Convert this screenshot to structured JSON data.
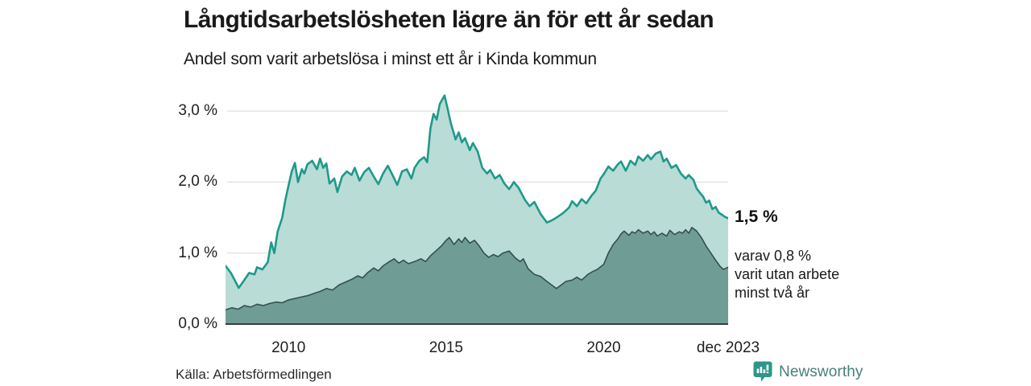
{
  "header": {
    "title": "Långtidsarbetslösheten lägre än för ett år sedan",
    "subtitle": "Andel som varit arbetslösa i minst ett år i Kinda kommun"
  },
  "footer": {
    "source": "Källa: Arbetsförmedlingen",
    "brand": "Newsworthy",
    "brand_color": "#2e9688",
    "brand_text_color": "#46817b"
  },
  "chart_data": {
    "type": "area",
    "title": "Långtidsarbetslösheten lägre än för ett år sedan",
    "subtitle": "Andel som varit arbetslösa i minst ett år i Kinda kommun",
    "unit": "%",
    "x_domain": [
      2008,
      2023.95
    ],
    "ylim": [
      0,
      3.32
    ],
    "grid": true,
    "gridline_color": "#d9d9d9",
    "baseline_color": "#3c3c3c",
    "y_ticks": [
      {
        "label": "0,0 %",
        "value": 0
      },
      {
        "label": "1,0 %",
        "value": 1
      },
      {
        "label": "2,0 %",
        "value": 2
      },
      {
        "label": "3,0 %",
        "value": 3
      }
    ],
    "x_ticks": [
      {
        "label": "2010",
        "year": 2010
      },
      {
        "label": "2015",
        "year": 2015
      },
      {
        "label": "2020",
        "year": 2020
      },
      {
        "label": "dec 2023",
        "year": 2023.95
      }
    ],
    "series": [
      {
        "name": "arbetslösa minst ett år",
        "line_color": "#1f998a",
        "fill_color": "#b9dcd6",
        "line_width": 2.6,
        "last_value_label": "1,5 %",
        "points": [
          [
            2008.0,
            0.82
          ],
          [
            2008.17,
            0.72
          ],
          [
            2008.42,
            0.51
          ],
          [
            2008.58,
            0.61
          ],
          [
            2008.75,
            0.72
          ],
          [
            2008.92,
            0.7
          ],
          [
            2009.0,
            0.8
          ],
          [
            2009.17,
            0.77
          ],
          [
            2009.34,
            0.87
          ],
          [
            2009.45,
            1.15
          ],
          [
            2009.55,
            1.0
          ],
          [
            2009.65,
            1.3
          ],
          [
            2009.8,
            1.5
          ],
          [
            2009.9,
            1.75
          ],
          [
            2010.0,
            1.95
          ],
          [
            2010.1,
            2.15
          ],
          [
            2010.2,
            2.27
          ],
          [
            2010.3,
            2.0
          ],
          [
            2010.42,
            2.18
          ],
          [
            2010.5,
            2.12
          ],
          [
            2010.6,
            2.25
          ],
          [
            2010.75,
            2.3
          ],
          [
            2010.9,
            2.18
          ],
          [
            2011.0,
            2.33
          ],
          [
            2011.1,
            2.2
          ],
          [
            2011.2,
            2.26
          ],
          [
            2011.3,
            1.98
          ],
          [
            2011.45,
            2.05
          ],
          [
            2011.55,
            1.86
          ],
          [
            2011.7,
            2.08
          ],
          [
            2011.85,
            2.15
          ],
          [
            2012.0,
            2.1
          ],
          [
            2012.1,
            2.2
          ],
          [
            2012.25,
            2.02
          ],
          [
            2012.4,
            2.14
          ],
          [
            2012.55,
            2.2
          ],
          [
            2012.7,
            2.08
          ],
          [
            2012.85,
            1.97
          ],
          [
            2013.0,
            2.12
          ],
          [
            2013.15,
            2.23
          ],
          [
            2013.3,
            2.1
          ],
          [
            2013.45,
            1.96
          ],
          [
            2013.6,
            2.15
          ],
          [
            2013.75,
            2.18
          ],
          [
            2013.9,
            2.05
          ],
          [
            2014.0,
            2.2
          ],
          [
            2014.15,
            2.3
          ],
          [
            2014.3,
            2.35
          ],
          [
            2014.4,
            2.28
          ],
          [
            2014.5,
            2.75
          ],
          [
            2014.6,
            2.96
          ],
          [
            2014.7,
            2.88
          ],
          [
            2014.8,
            3.1
          ],
          [
            2014.95,
            3.22
          ],
          [
            2015.05,
            3.03
          ],
          [
            2015.15,
            2.83
          ],
          [
            2015.3,
            2.6
          ],
          [
            2015.4,
            2.7
          ],
          [
            2015.5,
            2.56
          ],
          [
            2015.6,
            2.62
          ],
          [
            2015.75,
            2.45
          ],
          [
            2015.85,
            2.55
          ],
          [
            2016.0,
            2.43
          ],
          [
            2016.15,
            2.2
          ],
          [
            2016.3,
            2.12
          ],
          [
            2016.4,
            2.17
          ],
          [
            2016.55,
            2.05
          ],
          [
            2016.7,
            2.1
          ],
          [
            2016.85,
            1.98
          ],
          [
            2017.0,
            1.9
          ],
          [
            2017.15,
            2.0
          ],
          [
            2017.3,
            1.92
          ],
          [
            2017.5,
            1.75
          ],
          [
            2017.65,
            1.66
          ],
          [
            2017.8,
            1.72
          ],
          [
            2018.0,
            1.55
          ],
          [
            2018.2,
            1.43
          ],
          [
            2018.35,
            1.46
          ],
          [
            2018.5,
            1.5
          ],
          [
            2018.7,
            1.56
          ],
          [
            2018.9,
            1.64
          ],
          [
            2019.0,
            1.73
          ],
          [
            2019.15,
            1.66
          ],
          [
            2019.3,
            1.76
          ],
          [
            2019.45,
            1.7
          ],
          [
            2019.6,
            1.8
          ],
          [
            2019.75,
            1.88
          ],
          [
            2019.9,
            2.05
          ],
          [
            2020.0,
            2.11
          ],
          [
            2020.15,
            2.22
          ],
          [
            2020.3,
            2.16
          ],
          [
            2020.45,
            2.25
          ],
          [
            2020.55,
            2.29
          ],
          [
            2020.7,
            2.16
          ],
          [
            2020.85,
            2.3
          ],
          [
            2021.0,
            2.24
          ],
          [
            2021.1,
            2.36
          ],
          [
            2021.25,
            2.3
          ],
          [
            2021.4,
            2.38
          ],
          [
            2021.5,
            2.32
          ],
          [
            2021.65,
            2.4
          ],
          [
            2021.8,
            2.43
          ],
          [
            2021.9,
            2.29
          ],
          [
            2022.0,
            2.33
          ],
          [
            2022.15,
            2.2
          ],
          [
            2022.3,
            2.24
          ],
          [
            2022.45,
            2.12
          ],
          [
            2022.6,
            2.05
          ],
          [
            2022.7,
            2.1
          ],
          [
            2022.85,
            2.03
          ],
          [
            2022.95,
            1.91
          ],
          [
            2023.05,
            1.85
          ],
          [
            2023.15,
            1.8
          ],
          [
            2023.25,
            1.71
          ],
          [
            2023.35,
            1.74
          ],
          [
            2023.45,
            1.62
          ],
          [
            2023.55,
            1.65
          ],
          [
            2023.65,
            1.57
          ],
          [
            2023.75,
            1.54
          ],
          [
            2023.85,
            1.51
          ],
          [
            2023.95,
            1.49
          ]
        ]
      },
      {
        "name": "varav utan arbete minst två år",
        "line_color": "#33514c",
        "fill_color": "#6f9d96",
        "line_width": 1.6,
        "last_value_label": "0,8 %",
        "points": [
          [
            2008.0,
            0.2
          ],
          [
            2008.2,
            0.23
          ],
          [
            2008.4,
            0.21
          ],
          [
            2008.6,
            0.26
          ],
          [
            2008.8,
            0.24
          ],
          [
            2009.0,
            0.28
          ],
          [
            2009.2,
            0.26
          ],
          [
            2009.4,
            0.29
          ],
          [
            2009.6,
            0.31
          ],
          [
            2009.8,
            0.3
          ],
          [
            2010.0,
            0.34
          ],
          [
            2010.2,
            0.36
          ],
          [
            2010.4,
            0.38
          ],
          [
            2010.6,
            0.4
          ],
          [
            2010.8,
            0.43
          ],
          [
            2011.0,
            0.46
          ],
          [
            2011.2,
            0.5
          ],
          [
            2011.4,
            0.48
          ],
          [
            2011.6,
            0.55
          ],
          [
            2011.8,
            0.59
          ],
          [
            2012.0,
            0.63
          ],
          [
            2012.2,
            0.68
          ],
          [
            2012.35,
            0.65
          ],
          [
            2012.5,
            0.72
          ],
          [
            2012.7,
            0.79
          ],
          [
            2012.85,
            0.75
          ],
          [
            2013.0,
            0.82
          ],
          [
            2013.2,
            0.88
          ],
          [
            2013.35,
            0.92
          ],
          [
            2013.5,
            0.86
          ],
          [
            2013.65,
            0.9
          ],
          [
            2013.8,
            0.85
          ],
          [
            2014.0,
            0.88
          ],
          [
            2014.2,
            0.92
          ],
          [
            2014.35,
            0.88
          ],
          [
            2014.5,
            0.96
          ],
          [
            2014.7,
            1.04
          ],
          [
            2014.85,
            1.1
          ],
          [
            2015.0,
            1.18
          ],
          [
            2015.1,
            1.22
          ],
          [
            2015.25,
            1.12
          ],
          [
            2015.4,
            1.2
          ],
          [
            2015.5,
            1.15
          ],
          [
            2015.6,
            1.22
          ],
          [
            2015.75,
            1.14
          ],
          [
            2015.9,
            1.18
          ],
          [
            2016.05,
            1.1
          ],
          [
            2016.2,
            1.0
          ],
          [
            2016.35,
            0.94
          ],
          [
            2016.5,
            0.98
          ],
          [
            2016.65,
            0.95
          ],
          [
            2016.8,
            1.0
          ],
          [
            2017.0,
            1.03
          ],
          [
            2017.2,
            0.93
          ],
          [
            2017.35,
            0.88
          ],
          [
            2017.45,
            0.92
          ],
          [
            2017.6,
            0.78
          ],
          [
            2017.8,
            0.7
          ],
          [
            2018.0,
            0.67
          ],
          [
            2018.2,
            0.6
          ],
          [
            2018.35,
            0.55
          ],
          [
            2018.5,
            0.5
          ],
          [
            2018.65,
            0.55
          ],
          [
            2018.8,
            0.6
          ],
          [
            2019.0,
            0.62
          ],
          [
            2019.15,
            0.66
          ],
          [
            2019.3,
            0.62
          ],
          [
            2019.5,
            0.7
          ],
          [
            2019.65,
            0.74
          ],
          [
            2019.8,
            0.77
          ],
          [
            2020.0,
            0.84
          ],
          [
            2020.15,
            1.0
          ],
          [
            2020.3,
            1.12
          ],
          [
            2020.45,
            1.2
          ],
          [
            2020.55,
            1.27
          ],
          [
            2020.65,
            1.31
          ],
          [
            2020.8,
            1.25
          ],
          [
            2020.9,
            1.3
          ],
          [
            2021.0,
            1.28
          ],
          [
            2021.1,
            1.33
          ],
          [
            2021.25,
            1.28
          ],
          [
            2021.4,
            1.31
          ],
          [
            2021.5,
            1.26
          ],
          [
            2021.6,
            1.3
          ],
          [
            2021.7,
            1.24
          ],
          [
            2021.85,
            1.28
          ],
          [
            2022.0,
            1.24
          ],
          [
            2022.1,
            1.32
          ],
          [
            2022.25,
            1.26
          ],
          [
            2022.4,
            1.3
          ],
          [
            2022.5,
            1.28
          ],
          [
            2022.6,
            1.33
          ],
          [
            2022.7,
            1.28
          ],
          [
            2022.8,
            1.36
          ],
          [
            2022.95,
            1.31
          ],
          [
            2023.1,
            1.22
          ],
          [
            2023.25,
            1.1
          ],
          [
            2023.4,
            1.0
          ],
          [
            2023.55,
            0.9
          ],
          [
            2023.7,
            0.81
          ],
          [
            2023.8,
            0.77
          ],
          [
            2023.95,
            0.8
          ]
        ]
      }
    ],
    "annotations": [
      {
        "text": "1,5 %",
        "bold": true,
        "at_value": 1.49
      },
      {
        "lines": [
          "varav 0,8 %",
          "varit utan arbete",
          "minst två år"
        ],
        "at_value": 0.8,
        "line1": "varav 0,8 %",
        "line2": "varit utan arbete",
        "line3": "minst två år"
      }
    ]
  }
}
